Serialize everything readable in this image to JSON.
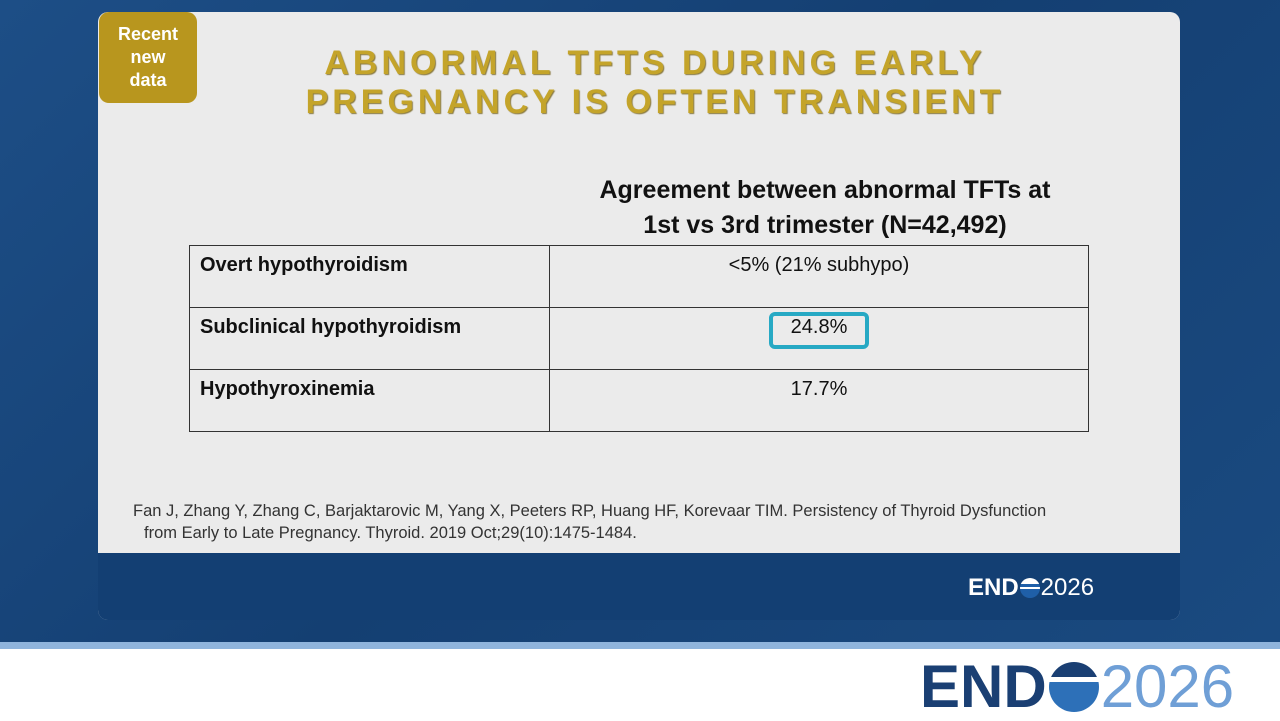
{
  "badge": "Recent new data",
  "title": [
    "ABNORMAL TFTS DURING EARLY",
    "PREGNANCY IS OFTEN TRANSIENT"
  ],
  "heading": [
    "Agreement between abnormal TFTs at",
    "1st vs 3rd trimester (N=42,492)"
  ],
  "table": {
    "rows": [
      [
        "Overt hypothyroidism",
        "<5% (21% subhypo)"
      ],
      [
        "Subclinical hypothyroidism",
        "24.8%"
      ],
      [
        "Hypothyroxinemia",
        "17.7%"
      ]
    ]
  },
  "citation": [
    "Fan J, Zhang Y, Zhang C, Barjaktarovic M, Yang X, Peeters RP, Huang HF, Korevaar TIM. Persistency of Thyroid Dysfunction",
    "from Early to Late Pregnancy. Thyroid. 2019 Oct;29(10):1475-1484."
  ],
  "slide_logo": {
    "brand": "END",
    "year": "2026"
  },
  "footer_logo": {
    "brand": "END",
    "year": "2026"
  }
}
